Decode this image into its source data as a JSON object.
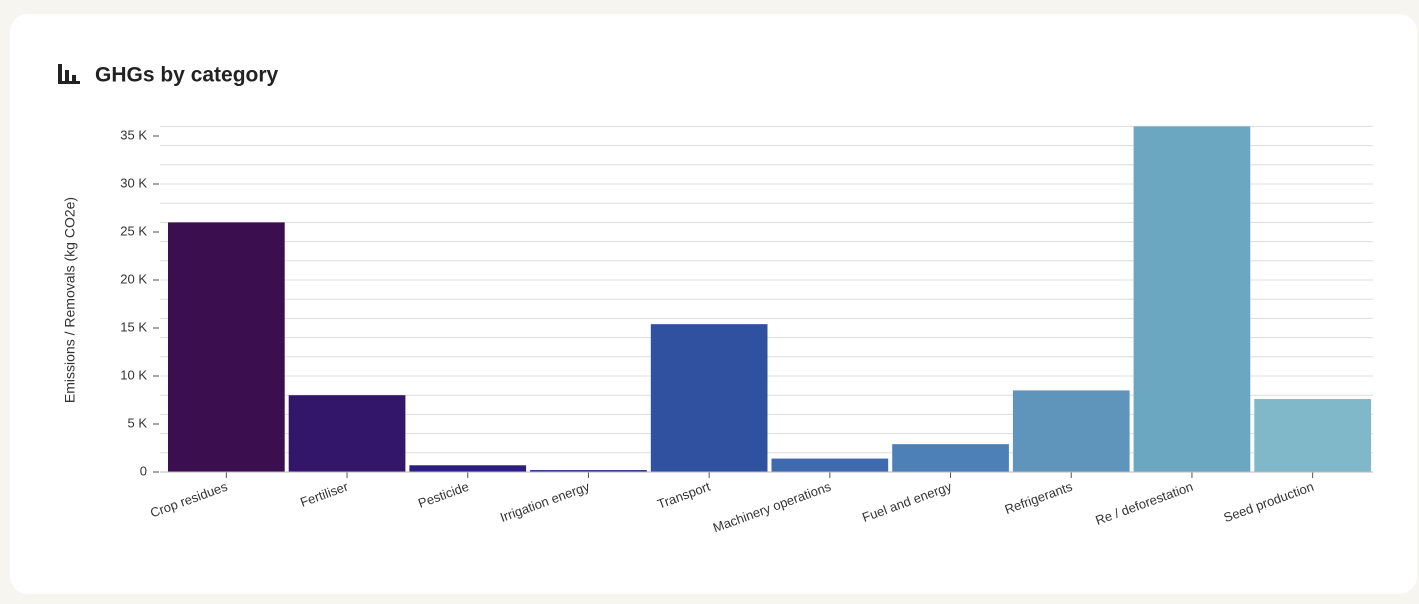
{
  "header": {
    "title": "GHGs by category"
  },
  "chart_data": {
    "type": "bar",
    "y_label": "Emissions / Removals (kg CO2e)",
    "categories": [
      "Crop residues",
      "Fertiliser",
      "Pesticide",
      "Irrigation energy",
      "Transport",
      "Machinery operations",
      "Fuel and energy",
      "Refrigerants",
      "Re / deforestation",
      "Seed production"
    ],
    "values": [
      26000,
      8000,
      700,
      200,
      15400,
      1400,
      2900,
      8500,
      36000,
      7600
    ],
    "colors": [
      "#3b0f4f",
      "#33156a",
      "#2a1e83",
      "#262f8a",
      "#30519f",
      "#3f6aaf",
      "#4c80b6",
      "#5f95bb",
      "#6ca7c2",
      "#80b8c9"
    ],
    "ylim": [
      0,
      36000
    ],
    "yticks": [
      {
        "value": 0,
        "label": "0"
      },
      {
        "value": 5000,
        "label": "5 K"
      },
      {
        "value": 10000,
        "label": "10 K"
      },
      {
        "value": 15000,
        "label": "15 K"
      },
      {
        "value": 20000,
        "label": "20 K"
      },
      {
        "value": 25000,
        "label": "25 K"
      },
      {
        "value": 30000,
        "label": "30 K"
      },
      {
        "value": 35000,
        "label": "35 K"
      }
    ],
    "ygrid": [
      0,
      2000,
      4000,
      6000,
      8000,
      10000,
      12000,
      14000,
      16000,
      18000,
      20000,
      22000,
      24000,
      26000,
      28000,
      30000,
      32000,
      34000,
      36000
    ]
  }
}
